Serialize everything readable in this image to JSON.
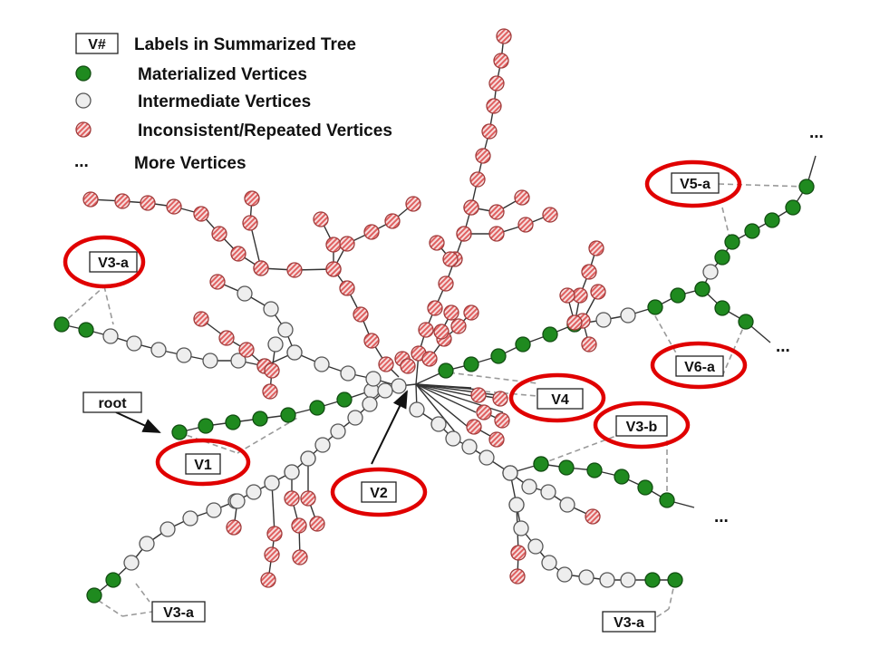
{
  "legend": {
    "items": [
      {
        "symbol": "label-box",
        "box_text": "V#",
        "text": "Labels in Summarized Tree"
      },
      {
        "symbol": "materialized",
        "text": "Materialized Vertices"
      },
      {
        "symbol": "intermediate",
        "text": "Intermediate Vertices"
      },
      {
        "symbol": "inconsistent",
        "text": "Inconsistent/Repeated Vertices"
      },
      {
        "symbol": "ellipsis",
        "glyph": "...",
        "text": "More Vertices"
      }
    ]
  },
  "colors": {
    "materialized": "#1f8a1f",
    "intermediate": "#eeeeee",
    "inconsistent_stripe": "#e06060",
    "highlight_ring": "#e00000"
  },
  "labels": {
    "root": "root",
    "v1": "V1",
    "v2": "V2",
    "v3a_upper": "V3-a",
    "v3a_lower_left": "V3-a",
    "v3a_lower_right": "V3-a",
    "v3b": "V3-b",
    "v4": "V4",
    "v5a": "V5-a",
    "v6a": "V6-a"
  },
  "more_marker": "..."
}
